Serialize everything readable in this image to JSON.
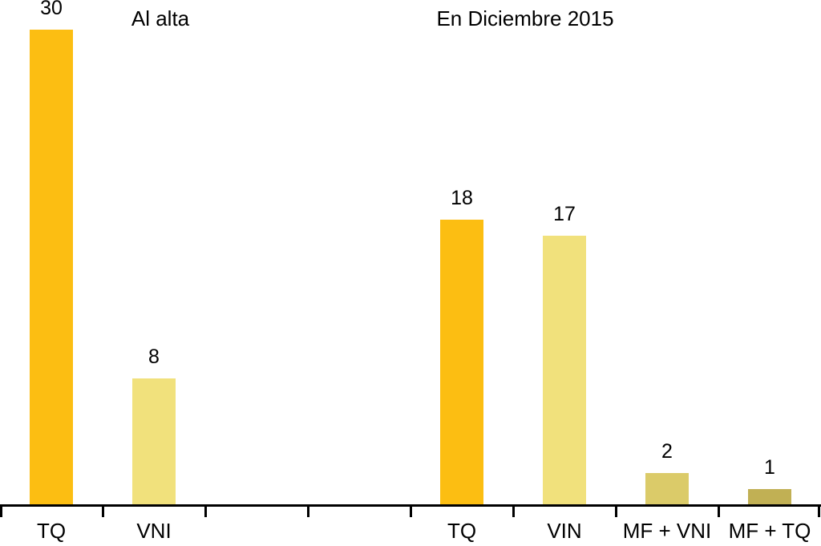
{
  "chart_data": {
    "type": "bar",
    "title": "En Diciembre 2015",
    "annotations": {
      "left_group_title": "Al alta",
      "right_group_title": "En Diciembre 2015"
    },
    "slots": 8,
    "bars": [
      {
        "slot": 0,
        "group": "Al alta",
        "category": "TQ",
        "value": 30,
        "color": "#FCBE12"
      },
      {
        "slot": 1,
        "group": "Al alta",
        "category": "VNI",
        "value": 8,
        "color": "#F1E17C"
      },
      {
        "slot": 4,
        "group": "En Diciembre 2015",
        "category": "TQ",
        "value": 18,
        "color": "#FCBE12"
      },
      {
        "slot": 5,
        "group": "En Diciembre 2015",
        "category": "VIN",
        "value": 17,
        "color": "#F1E17C"
      },
      {
        "slot": 6,
        "group": "En Diciembre 2015",
        "category": "MF + VNI",
        "value": 2,
        "color": "#DBCB69"
      },
      {
        "slot": 7,
        "group": "En Diciembre 2015",
        "category": "MF + TQ",
        "value": 1,
        "color": "#C1B054"
      }
    ],
    "colors": {
      "amber": "#FCBE12",
      "pale_yellow": "#F1E17C",
      "khaki_light": "#DBCB69",
      "khaki_dark": "#C1B054"
    },
    "xlabel": "",
    "ylabel": "",
    "ylim": [
      0,
      30
    ],
    "grid": false,
    "legend": "none",
    "y_axis_visible": false,
    "x_tick_count": 9,
    "axis_color": "#000000",
    "text_color": "#000000",
    "background": "#FFFFFF"
  }
}
